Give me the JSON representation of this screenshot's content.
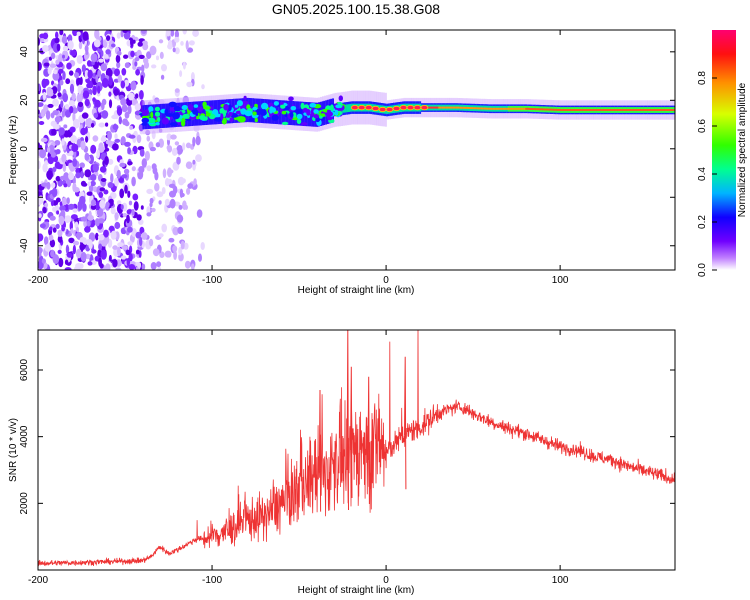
{
  "title": "GN05.2025.100.15.38.G08",
  "chart_data": [
    {
      "type": "heatmap",
      "xlabel": "Height of straight line (km)",
      "ylabel": "Frequency (Hz)",
      "xlim": [
        -200,
        166
      ],
      "ylim": [
        -50,
        49
      ],
      "x_ticks": [
        -200,
        -100,
        0,
        100
      ],
      "y_ticks": [
        -40,
        -20,
        0,
        20,
        40
      ],
      "ridge": {
        "x": [
          -140,
          -120,
          -100,
          -80,
          -60,
          -40,
          -30,
          -20,
          -10,
          0,
          10,
          20,
          40,
          60,
          80,
          100,
          120,
          140,
          166
        ],
        "frequency_hz": [
          13,
          14,
          15,
          16,
          15,
          14,
          16,
          17,
          17,
          16,
          17,
          17,
          17,
          16.5,
          16.5,
          16,
          16,
          16,
          16
        ]
      },
      "noise_region_x": [
        -200,
        -105
      ],
      "colorbar": {
        "label": "Normalized spectral amplitude",
        "ticks": [
          0.0,
          0.2,
          0.4,
          0.6,
          0.8
        ],
        "range": [
          0,
          1
        ],
        "colors": [
          "#ffffff",
          "#b060ff",
          "#6a00ff",
          "#0000ff",
          "#00c8ff",
          "#00ff80",
          "#40ff00",
          "#ffff00",
          "#ff8000",
          "#ff0000",
          "#ff0060"
        ]
      }
    },
    {
      "type": "line",
      "xlabel": "Height of straight line (km)",
      "ylabel": "SNR (10 * v/v)",
      "xlim": [
        -200,
        166
      ],
      "ylim": [
        0,
        7200
      ],
      "x_ticks": [
        -200,
        -100,
        0,
        100
      ],
      "y_ticks": [
        2000,
        4000,
        6000
      ],
      "color": "#ee3333",
      "series": [
        {
          "x": [
            -200,
            -180,
            -160,
            -140,
            -135,
            -130,
            -125,
            -120,
            -110,
            -100,
            -90,
            -80,
            -70,
            -60,
            -55,
            -50,
            -45,
            -40,
            -35,
            -30,
            -27,
            -25,
            -22,
            -20,
            -15,
            -10,
            -5,
            0,
            5,
            10,
            15,
            20,
            25,
            30,
            35,
            40,
            45,
            50,
            60,
            70,
            80,
            90,
            100,
            110,
            120,
            130,
            140,
            150,
            160,
            166
          ],
          "values": [
            200,
            220,
            250,
            280,
            400,
            700,
            500,
            600,
            900,
            1000,
            1200,
            1500,
            1600,
            2000,
            2200,
            2500,
            2600,
            3000,
            2800,
            3200,
            3500,
            3400,
            3000,
            3600,
            3700,
            3300,
            3900,
            3500,
            3800,
            4000,
            4200,
            4300,
            4500,
            4700,
            4800,
            4900,
            4850,
            4700,
            4450,
            4250,
            4100,
            3900,
            3700,
            3600,
            3400,
            3300,
            3100,
            2950,
            2800,
            2700
          ]
        }
      ],
      "spikes": [
        {
          "x": -22,
          "value": 7200
        },
        {
          "x": -20,
          "value": 6100
        },
        {
          "x": -38,
          "value": 5400
        },
        {
          "x": 11,
          "value": 6400
        },
        {
          "x": -10,
          "value": 5800
        }
      ]
    }
  ]
}
